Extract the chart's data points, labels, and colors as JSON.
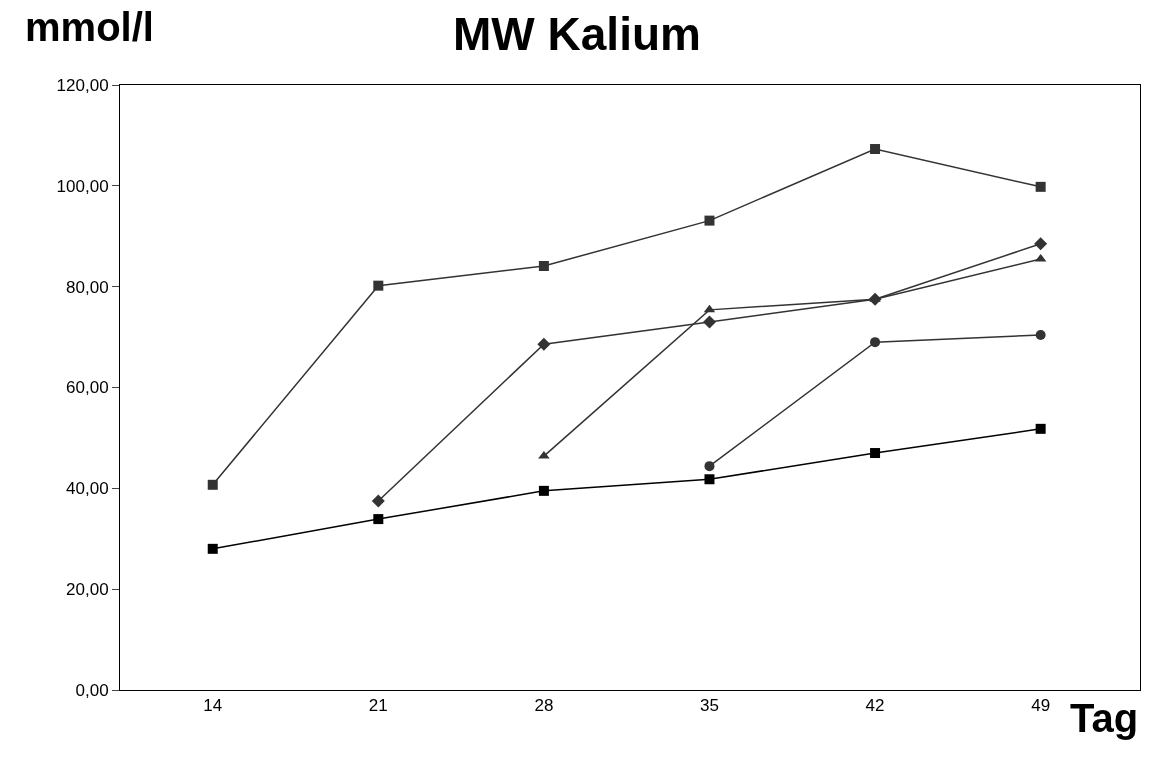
{
  "chart_data": {
    "type": "line",
    "title": "MW Kalium",
    "xlabel": "Tag",
    "ylabel": "mmol/l",
    "categories": [
      "14",
      "21",
      "28",
      "35",
      "42",
      "49"
    ],
    "series": [
      {
        "color": "#333333",
        "marker": "square",
        "values": [
          40.7,
          80.2,
          84.1,
          93.1,
          107.3,
          99.8
        ]
      },
      {
        "color": "#333333",
        "marker": "diamond",
        "values": [
          null,
          37.5,
          68.6,
          73.0,
          77.5,
          88.5
        ]
      },
      {
        "color": "#333333",
        "marker": "triangle",
        "values": [
          null,
          null,
          46.4,
          75.4,
          77.5,
          85.5
        ]
      },
      {
        "color": "#333333",
        "marker": "circle",
        "values": [
          null,
          null,
          null,
          44.4,
          69.0,
          70.4
        ]
      },
      {
        "color": "#000000",
        "marker": "square",
        "values": [
          28.0,
          33.9,
          39.5,
          41.8,
          47.0,
          51.8
        ]
      }
    ],
    "ylim": [
      0,
      120
    ],
    "yticks": [
      {
        "value": 0,
        "label": "0,00"
      },
      {
        "value": 20,
        "label": "20,00"
      },
      {
        "value": 40,
        "label": "40,00"
      },
      {
        "value": 60,
        "label": "60,00"
      },
      {
        "value": 80,
        "label": "80,00"
      },
      {
        "value": 100,
        "label": "100,00"
      },
      {
        "value": 120,
        "label": "120,00"
      }
    ],
    "line_style": "solid"
  }
}
